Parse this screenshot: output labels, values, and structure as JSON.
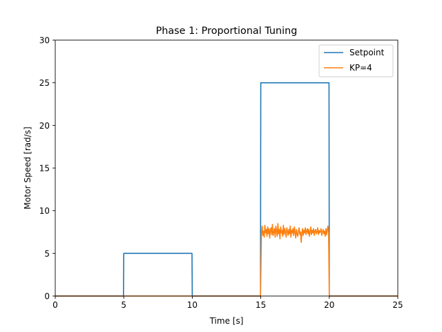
{
  "chart_data": {
    "type": "line",
    "title": "Phase 1: Proportional Tuning",
    "xlabel": "Time [s]",
    "ylabel": "Motor Speed [rad/s]",
    "xlim": [
      0,
      25
    ],
    "ylim": [
      0,
      30
    ],
    "xticks": [
      "0",
      "5",
      "10",
      "15",
      "20",
      "25"
    ],
    "yticks": [
      "0",
      "5",
      "10",
      "15",
      "20",
      "25",
      "30"
    ],
    "grid": false,
    "legend": "top-right",
    "series": [
      {
        "name": "Setpoint",
        "color": "#1f77b4",
        "x": [
          0,
          4.98,
          5.0,
          9.98,
          10.0,
          14.98,
          15.0,
          19.98,
          20.0,
          25
        ],
        "y": [
          0,
          0,
          5,
          5,
          0,
          0,
          25,
          25,
          0,
          0
        ]
      },
      {
        "name": "KP=4",
        "color": "#ff7f0e",
        "x": [
          0,
          4.98,
          5.0,
          9.98,
          10.0,
          14.98,
          15.05,
          15.1,
          15.15,
          15.2,
          15.25,
          15.3,
          15.35,
          15.4,
          15.45,
          15.5,
          15.55,
          15.6,
          15.65,
          15.7,
          15.75,
          15.8,
          15.85,
          15.9,
          15.95,
          16.0,
          16.05,
          16.1,
          16.15,
          16.2,
          16.25,
          16.3,
          16.35,
          16.4,
          16.45,
          16.5,
          16.55,
          16.6,
          16.65,
          16.7,
          16.75,
          16.8,
          16.85,
          16.9,
          16.95,
          17.0,
          17.05,
          17.1,
          17.15,
          17.2,
          17.25,
          17.3,
          17.35,
          17.4,
          17.45,
          17.5,
          17.55,
          17.6,
          17.65,
          17.7,
          17.75,
          17.8,
          17.85,
          17.9,
          17.95,
          18.0,
          18.05,
          18.1,
          18.15,
          18.2,
          18.25,
          18.3,
          18.35,
          18.4,
          18.45,
          18.5,
          18.55,
          18.6,
          18.65,
          18.7,
          18.75,
          18.8,
          18.85,
          18.9,
          18.95,
          19.0,
          19.05,
          19.1,
          19.15,
          19.2,
          19.25,
          19.3,
          19.35,
          19.4,
          19.45,
          19.5,
          19.55,
          19.6,
          19.65,
          19.7,
          19.75,
          19.8,
          19.85,
          19.9,
          19.95,
          20.0,
          20.05,
          25
        ],
        "y": [
          0,
          0,
          0,
          0,
          0,
          0,
          7.3,
          8.2,
          7.1,
          7.6,
          6.9,
          8.3,
          7.4,
          7.8,
          7.0,
          8.1,
          7.3,
          7.9,
          6.8,
          7.7,
          8.0,
          7.2,
          8.4,
          7.1,
          7.5,
          7.9,
          6.9,
          8.2,
          7.6,
          7.0,
          8.5,
          7.3,
          7.8,
          6.7,
          8.1,
          7.4,
          7.7,
          7.0,
          8.3,
          7.2,
          7.9,
          7.5,
          6.9,
          8.0,
          7.6,
          7.1,
          7.8,
          7.3,
          8.2,
          6.9,
          7.7,
          7.4,
          7.9,
          7.1,
          8.1,
          7.5,
          6.8,
          7.8,
          7.3,
          7.0,
          7.6,
          8.0,
          7.2,
          7.5,
          6.3,
          7.4,
          7.9,
          7.1,
          7.7,
          7.4,
          8.0,
          7.2,
          7.6,
          7.9,
          7.3,
          7.8,
          7.0,
          7.5,
          8.1,
          7.2,
          7.7,
          7.4,
          7.9,
          7.1,
          7.6,
          7.8,
          7.3,
          7.5,
          8.0,
          7.2,
          7.7,
          7.4,
          7.6,
          7.9,
          7.1,
          7.5,
          7.8,
          7.3,
          7.6,
          7.0,
          7.9,
          7.2,
          7.7,
          8.2,
          7.4,
          0,
          0,
          0
        ]
      }
    ]
  }
}
